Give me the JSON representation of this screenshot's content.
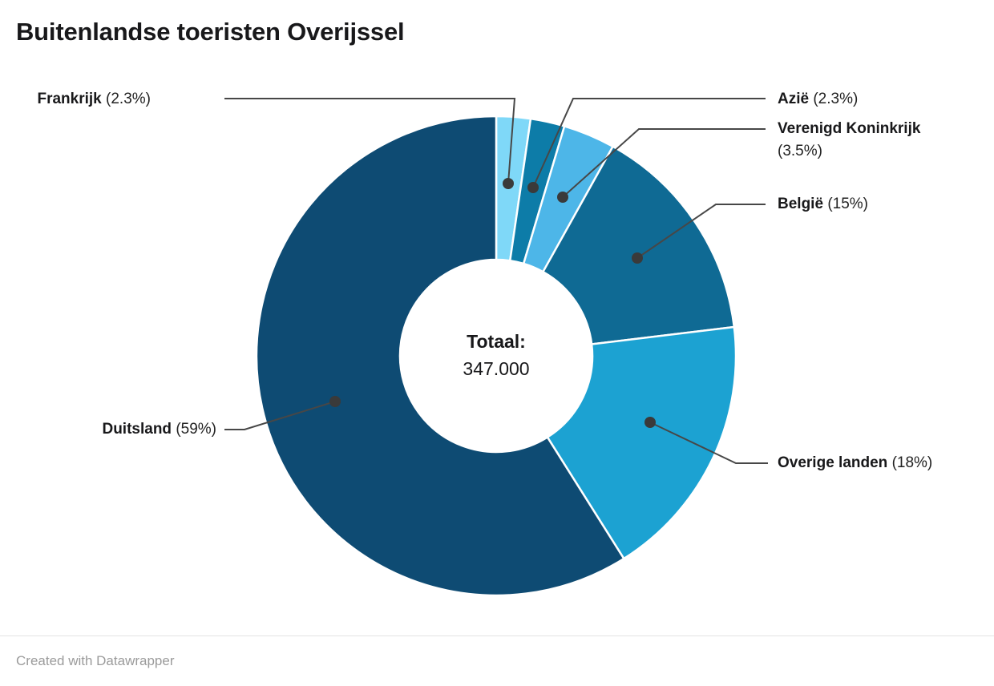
{
  "title": "Buitenlandse toeristen Overijssel",
  "footer": {
    "credit": "Created with Datawrapper"
  },
  "chart_data": {
    "type": "pie",
    "subtype": "donut",
    "title": "Buitenlandse toeristen Overijssel",
    "center_label": {
      "heading": "Totaal:",
      "value": "347.000"
    },
    "direction": "clockwise",
    "start_angle_deg": 0,
    "legend_position": "callout-labels",
    "slices": [
      {
        "name": "Frankrijk",
        "value": 2.3,
        "pct_label": "(2.3%)",
        "color": "#7FD8F8"
      },
      {
        "name": "Azië",
        "value": 2.3,
        "pct_label": "(2.3%)",
        "color": "#0D7CA8"
      },
      {
        "name": "Verenigd Koninkrijk",
        "value": 3.5,
        "pct_label": "(3.5%)",
        "color": "#4DB6E8"
      },
      {
        "name": "België",
        "value": 15,
        "pct_label": "(15%)",
        "color": "#0F6A94"
      },
      {
        "name": "Overige landen",
        "value": 18,
        "pct_label": "(18%)",
        "color": "#1CA2D2"
      },
      {
        "name": "Duitsland",
        "value": 59,
        "pct_label": "(59%)",
        "color": "#0E4B73"
      }
    ],
    "connector_color": "#474747",
    "gap_color": "#ffffff"
  }
}
